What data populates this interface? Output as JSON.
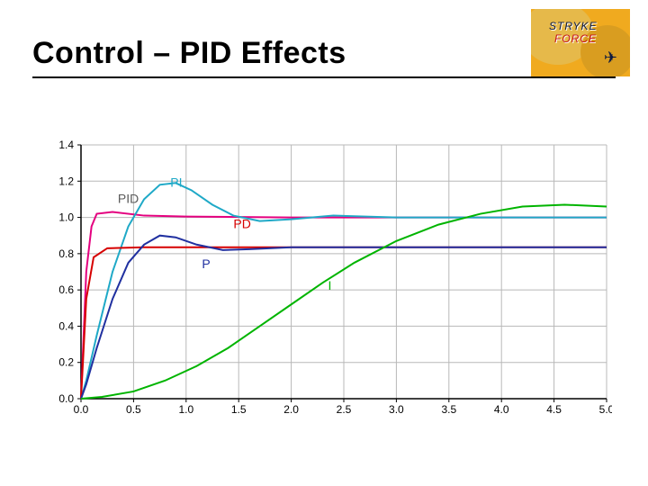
{
  "title": "Control – PID Effects",
  "logo": {
    "line1": "STRYKE",
    "line2": "FORCE",
    "bg": "#f0aa1f"
  },
  "chart": {
    "type": "line",
    "background_color": "#ffffff",
    "grid_color": "#b8b8b8",
    "axis_color": "#000000",
    "label_fontsize": 12,
    "xlim": [
      0.0,
      5.0
    ],
    "ylim": [
      0.0,
      1.4
    ],
    "xtick_step": 0.5,
    "ytick_step": 0.2,
    "xticks": [
      "0.0",
      "0.5",
      "1.0",
      "1.5",
      "2.0",
      "2.5",
      "3.0",
      "3.5",
      "4.0",
      "4.5",
      "5.0"
    ],
    "yticks": [
      "0.0",
      "0.2",
      "0.4",
      "0.6",
      "0.8",
      "1.0",
      "1.2",
      "1.4"
    ],
    "series": {
      "PID": {
        "label": "PID",
        "color": "#e4007f",
        "width": 2,
        "label_pos": {
          "x": 0.35,
          "y": 1.08
        },
        "label_color": "#5a5a5a",
        "points": [
          [
            0.0,
            0.0
          ],
          [
            0.05,
            0.7
          ],
          [
            0.1,
            0.95
          ],
          [
            0.15,
            1.02
          ],
          [
            0.3,
            1.03
          ],
          [
            0.6,
            1.01
          ],
          [
            1.0,
            1.005
          ],
          [
            2.0,
            1.0
          ],
          [
            5.0,
            1.0
          ]
        ]
      },
      "PI": {
        "label": "PI",
        "color": "#1fa9c7",
        "width": 2,
        "label_pos": {
          "x": 0.85,
          "y": 1.17
        },
        "label_color": "#1fa9c7",
        "points": [
          [
            0.0,
            0.0
          ],
          [
            0.05,
            0.1
          ],
          [
            0.15,
            0.35
          ],
          [
            0.3,
            0.7
          ],
          [
            0.45,
            0.95
          ],
          [
            0.6,
            1.1
          ],
          [
            0.75,
            1.18
          ],
          [
            0.9,
            1.19
          ],
          [
            1.05,
            1.15
          ],
          [
            1.25,
            1.07
          ],
          [
            1.45,
            1.01
          ],
          [
            1.7,
            0.98
          ],
          [
            2.0,
            0.99
          ],
          [
            2.4,
            1.01
          ],
          [
            3.0,
            1.0
          ],
          [
            5.0,
            1.0
          ]
        ]
      },
      "PD": {
        "label": "PD",
        "color": "#d60000",
        "width": 2,
        "label_pos": {
          "x": 1.45,
          "y": 0.94
        },
        "label_color": "#d60000",
        "points": [
          [
            0.0,
            0.0
          ],
          [
            0.05,
            0.55
          ],
          [
            0.12,
            0.78
          ],
          [
            0.25,
            0.83
          ],
          [
            0.6,
            0.835
          ],
          [
            1.5,
            0.835
          ],
          [
            5.0,
            0.835
          ]
        ]
      },
      "P": {
        "label": "P",
        "color": "#2030a0",
        "width": 2,
        "label_pos": {
          "x": 1.15,
          "y": 0.72
        },
        "label_color": "#2030a0",
        "points": [
          [
            0.0,
            0.0
          ],
          [
            0.05,
            0.08
          ],
          [
            0.15,
            0.28
          ],
          [
            0.3,
            0.55
          ],
          [
            0.45,
            0.75
          ],
          [
            0.6,
            0.85
          ],
          [
            0.75,
            0.9
          ],
          [
            0.9,
            0.89
          ],
          [
            1.1,
            0.85
          ],
          [
            1.35,
            0.82
          ],
          [
            1.6,
            0.825
          ],
          [
            2.0,
            0.835
          ],
          [
            3.0,
            0.835
          ],
          [
            5.0,
            0.835
          ]
        ]
      },
      "I": {
        "label": "I",
        "color": "#00b400",
        "width": 2,
        "label_pos": {
          "x": 2.35,
          "y": 0.6
        },
        "label_color": "#00b400",
        "points": [
          [
            0.0,
            0.0
          ],
          [
            0.2,
            0.01
          ],
          [
            0.5,
            0.04
          ],
          [
            0.8,
            0.1
          ],
          [
            1.1,
            0.18
          ],
          [
            1.4,
            0.28
          ],
          [
            1.7,
            0.4
          ],
          [
            2.0,
            0.52
          ],
          [
            2.3,
            0.64
          ],
          [
            2.6,
            0.75
          ],
          [
            3.0,
            0.87
          ],
          [
            3.4,
            0.96
          ],
          [
            3.8,
            1.02
          ],
          [
            4.2,
            1.06
          ],
          [
            4.6,
            1.07
          ],
          [
            5.0,
            1.06
          ]
        ]
      }
    }
  }
}
